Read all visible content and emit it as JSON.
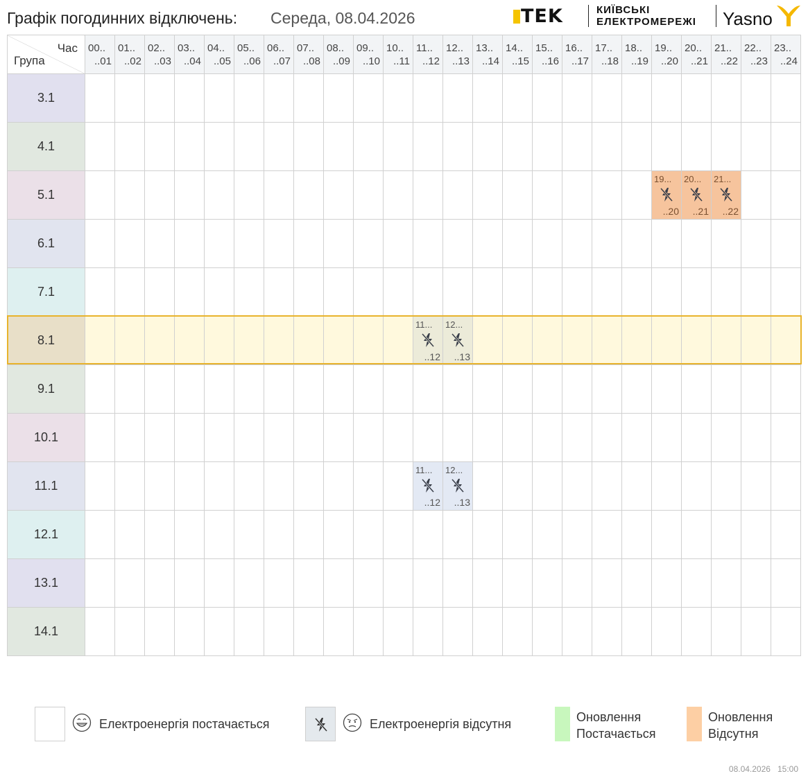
{
  "header": {
    "title": "Графік погодинних відключень:",
    "date": "Середа, 08.04.2026",
    "logo_dtek": "TEK",
    "logo_kyiv_line1": "КИЇВСЬКІ",
    "logo_kyiv_line2": "ЕЛЕКТРОМЕРЕЖІ",
    "logo_yasno": "Yasno"
  },
  "table": {
    "corner_hour": "Час",
    "corner_group": "Група",
    "hours": [
      {
        "top": "00..",
        "bottom": "..01"
      },
      {
        "top": "01..",
        "bottom": "..02"
      },
      {
        "top": "02..",
        "bottom": "..03"
      },
      {
        "top": "03..",
        "bottom": "..04"
      },
      {
        "top": "04..",
        "bottom": "..05"
      },
      {
        "top": "05..",
        "bottom": "..06"
      },
      {
        "top": "06..",
        "bottom": "..07"
      },
      {
        "top": "07..",
        "bottom": "..08"
      },
      {
        "top": "08..",
        "bottom": "..09"
      },
      {
        "top": "09..",
        "bottom": "..10"
      },
      {
        "top": "10..",
        "bottom": "..11"
      },
      {
        "top": "11..",
        "bottom": "..12"
      },
      {
        "top": "12..",
        "bottom": "..13"
      },
      {
        "top": "13..",
        "bottom": "..14"
      },
      {
        "top": "14..",
        "bottom": "..15"
      },
      {
        "top": "15..",
        "bottom": "..16"
      },
      {
        "top": "16..",
        "bottom": "..17"
      },
      {
        "top": "17..",
        "bottom": "..18"
      },
      {
        "top": "18..",
        "bottom": "..19"
      },
      {
        "top": "19..",
        "bottom": "..20"
      },
      {
        "top": "20..",
        "bottom": "..21"
      },
      {
        "top": "21..",
        "bottom": "..22"
      },
      {
        "top": "22..",
        "bottom": "..23"
      },
      {
        "top": "23..",
        "bottom": "..24"
      }
    ],
    "groups": [
      {
        "label": "3.1",
        "color": "#e1e0ef",
        "outages": [],
        "outage_type": "none"
      },
      {
        "label": "4.1",
        "color": "#e1e8e0",
        "outages": [],
        "outage_type": "none"
      },
      {
        "label": "5.1",
        "color": "#ebe0e8",
        "outages": [
          {
            "top": "19...",
            "bottom": "..20"
          },
          {
            "top": "20...",
            "bottom": "..21"
          },
          {
            "top": "21...",
            "bottom": "..22"
          }
        ],
        "outage_hours": [
          19,
          20,
          21
        ],
        "outage_type": "update-absent"
      },
      {
        "label": "6.1",
        "color": "#e1e4ef",
        "outages": [],
        "outage_type": "none"
      },
      {
        "label": "7.1",
        "color": "#def0f0",
        "outages": [],
        "outage_type": "none"
      },
      {
        "label": "8.1",
        "color": "#e8dfc8",
        "outages": [
          {
            "top": "11...",
            "bottom": "..12"
          },
          {
            "top": "12...",
            "bottom": "..13"
          }
        ],
        "outage_hours": [
          11,
          12
        ],
        "outage_type": "absent",
        "selected": true
      },
      {
        "label": "9.1",
        "color": "#e1e8e0",
        "outages": [],
        "outage_type": "none"
      },
      {
        "label": "10.1",
        "color": "#ebe0e8",
        "outages": [],
        "outage_type": "none"
      },
      {
        "label": "11.1",
        "color": "#e1e4ef",
        "outages": [
          {
            "top": "11...",
            "bottom": "..12"
          },
          {
            "top": "12...",
            "bottom": "..13"
          }
        ],
        "outage_hours": [
          11,
          12
        ],
        "outage_type": "absent"
      },
      {
        "label": "12.1",
        "color": "#def0f0",
        "outages": [],
        "outage_type": "none"
      },
      {
        "label": "13.1",
        "color": "#e1e0ef",
        "outages": [],
        "outage_type": "none"
      },
      {
        "label": "14.1",
        "color": "#e1e8e0",
        "outages": [],
        "outage_type": "none"
      }
    ]
  },
  "legend": {
    "power_on": "Електроенергія постачається",
    "power_off": "Електроенергія відсутня",
    "update_on_1": "Оновлення",
    "update_on_2": "Постачається",
    "update_off_1": "Оновлення",
    "update_off_2": "Відсутня",
    "colors": {
      "power_on": "#ffffff",
      "power_off": "#e4e9ed",
      "update_on": "#c8f7bd",
      "update_off": "#fdcfa4"
    }
  },
  "icons": {
    "outage": "no-power-icon",
    "happy": "happy-face-icon",
    "sad": "sad-face-icon"
  },
  "footer": {
    "date": "08.04.2026",
    "time": "15:00"
  }
}
